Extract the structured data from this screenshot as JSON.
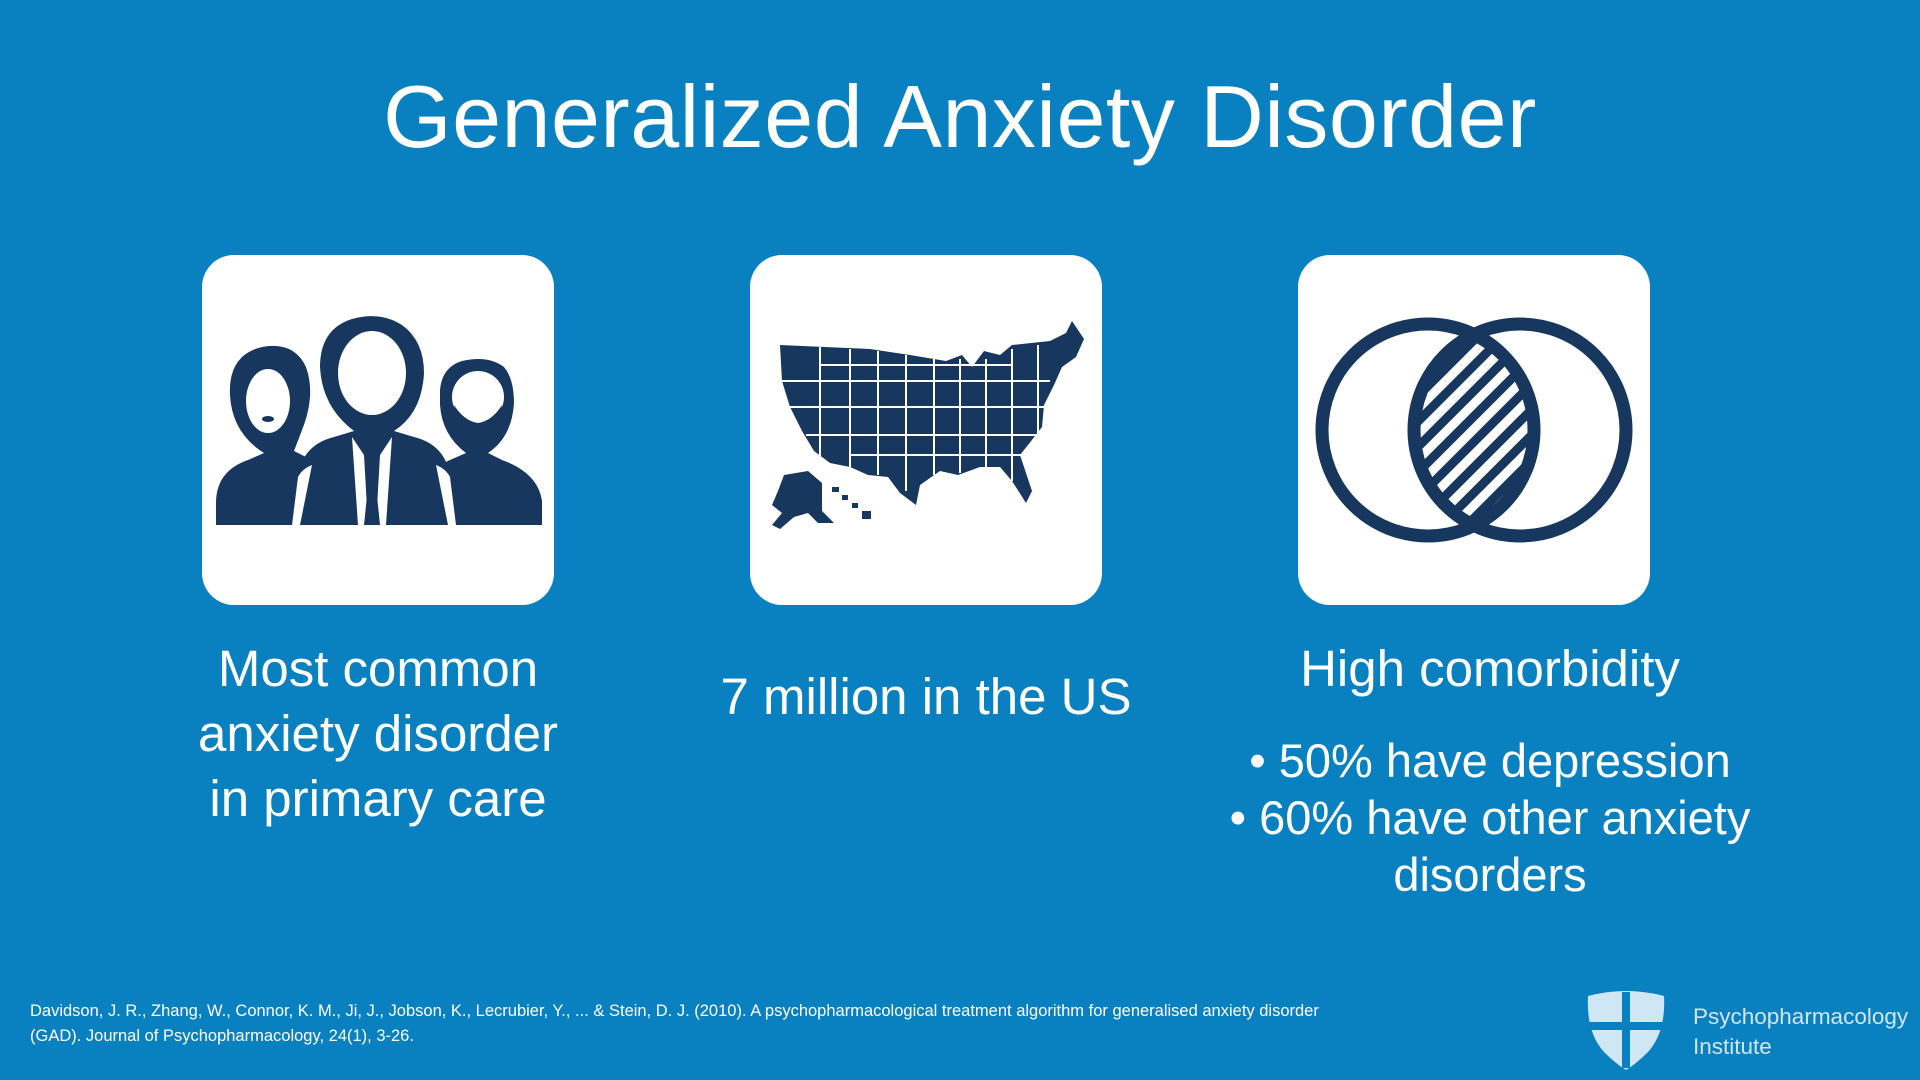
{
  "slide": {
    "title": "Generalized Anxiety Disorder"
  },
  "cards": [
    {
      "icon": "people-group-icon",
      "caption_lines": [
        "Most common",
        "anxiety disorder",
        "in primary care"
      ]
    },
    {
      "icon": "usa-map-icon",
      "caption_lines": [
        "7 million in the US"
      ]
    },
    {
      "icon": "venn-diagram-icon",
      "caption_lines": [
        "High comorbidity"
      ],
      "bullets": [
        "• 50% have depression",
        "• 60% have other anxiety",
        "disorders"
      ]
    }
  ],
  "citation": {
    "line1": "Davidson, J. R., Zhang, W., Connor, K. M., Ji, J., Jobson, K., Lecrubier, Y., ... & Stein, D. J. (2010). A psychopharmacological treatment algorithm for generalised anxiety disorder",
    "line2": "(GAD). Journal of Psychopharmacology, 24(1), 3-26."
  },
  "logo": {
    "line1": "Psychopharmacology",
    "line2": "Institute",
    "icon": "shield-cross-icon"
  },
  "colors": {
    "background": "#0980c0",
    "icon_navy": "#17375e",
    "card": "#ffffff",
    "text": "#ffffff"
  }
}
